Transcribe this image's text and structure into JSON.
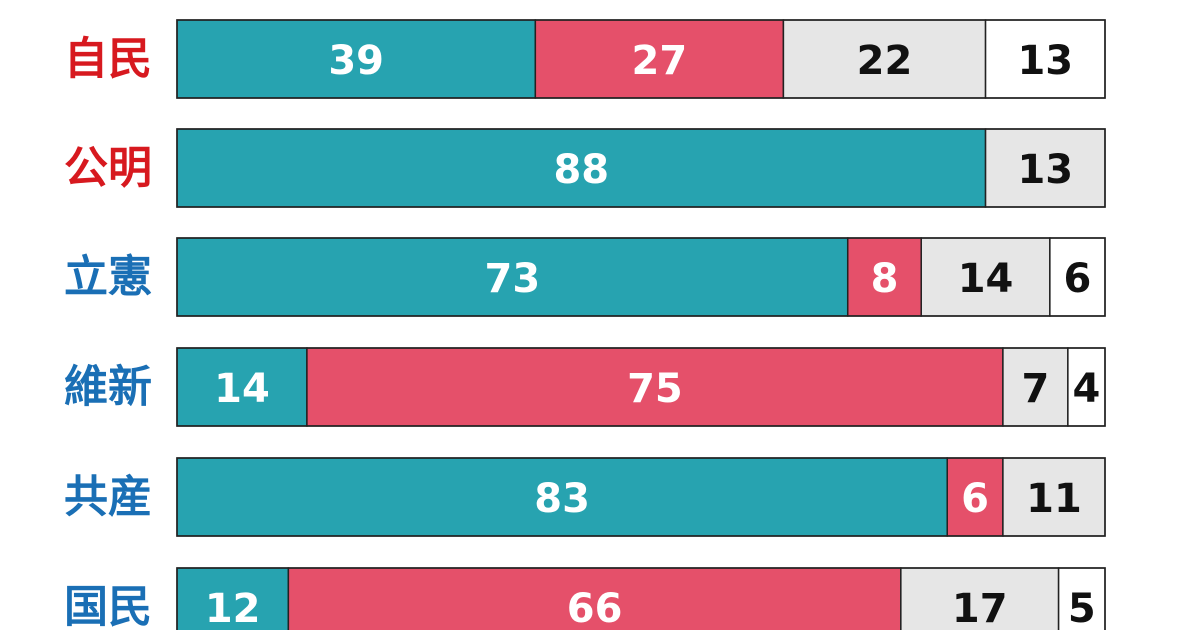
{
  "chart_data": {
    "type": "bar",
    "orientation": "horizontal",
    "stacked": true,
    "categories": [
      "自民",
      "公明",
      "立憲",
      "維新",
      "共産",
      "国民"
    ],
    "category_colors": [
      "#d7191f",
      "#d7191f",
      "#1a6fb5",
      "#1a6fb5",
      "#1a6fb5",
      "#1a6fb5"
    ],
    "series": [
      {
        "color": "#27a3b0",
        "text_color": "#ffffff",
        "values": [
          39,
          88,
          73,
          14,
          83,
          12
        ]
      },
      {
        "color": "#e5506a",
        "text_color": "#ffffff",
        "values": [
          27,
          0,
          8,
          75,
          6,
          66
        ]
      },
      {
        "color": "#e6e6e6",
        "text_color": "#111111",
        "values": [
          22,
          13,
          14,
          7,
          11,
          17
        ]
      },
      {
        "color": "#ffffff",
        "text_color": "#111111",
        "values": [
          13,
          0,
          6,
          4,
          0,
          5
        ]
      }
    ],
    "xlim": [
      0,
      100
    ],
    "grid": false,
    "legend": "none"
  }
}
